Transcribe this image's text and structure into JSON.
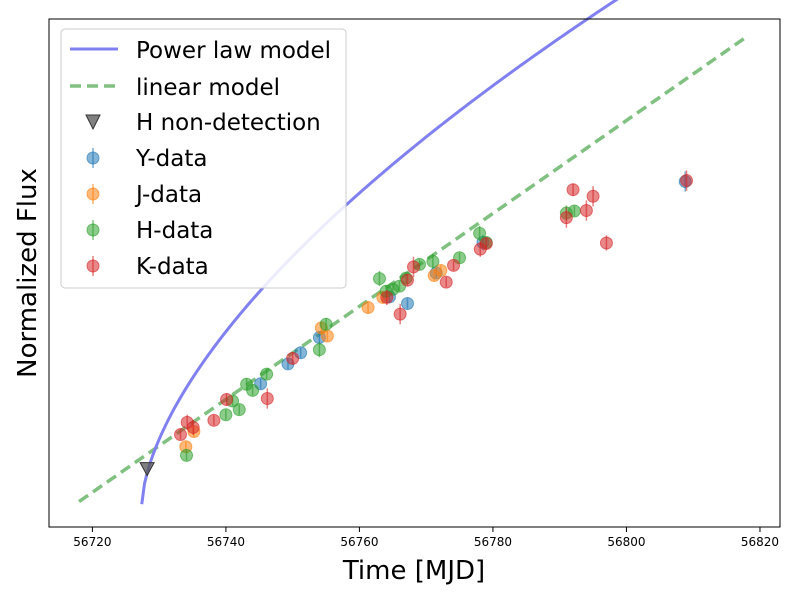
{
  "chart_data": {
    "type": "scatter",
    "title": "",
    "xlabel": "Time [MJD]",
    "ylabel": "Normalized Flux",
    "xlim": [
      56713.5,
      56823
    ],
    "ylim": [
      0,
      100
    ],
    "xticks": [
      56720,
      56740,
      56760,
      56780,
      56800,
      56820
    ],
    "grid": false,
    "legend_position": "top-left",
    "legend": [
      "Power law model",
      "linear model",
      "H non-detection",
      "Y-data",
      "J-data",
      "H-data",
      "K-data"
    ],
    "colors": {
      "power": "#8080f0",
      "linear": "#80c080",
      "nondet": "#555555",
      "Y": "#1f77b4",
      "J": "#ff7f0e",
      "H": "#2ca02c",
      "K": "#d62728"
    },
    "power_law_model": {
      "name": "Power law model",
      "t0": 56727.4,
      "tend": 56807.5,
      "y0": 4.5,
      "scale": 7.06,
      "exponent": 0.62
    },
    "linear_model": {
      "name": "linear model",
      "x": [
        56718,
        56818
      ],
      "y": [
        5,
        96.5
      ]
    },
    "nondetection": {
      "name": "H non-detection",
      "points": [
        {
          "x": 56728.2,
          "y": 11.5
        }
      ]
    },
    "series": [
      {
        "name": "Y-data",
        "key": "Y",
        "points": [
          {
            "x": 56745.2,
            "y": 28.2,
            "err": 1.0
          },
          {
            "x": 56749.3,
            "y": 32.1,
            "err": 1.0
          },
          {
            "x": 56751.2,
            "y": 34.3,
            "err": 1.0
          },
          {
            "x": 56754.0,
            "y": 37.3,
            "err": 1.2
          },
          {
            "x": 56764.5,
            "y": 45.3,
            "err": 1.0
          },
          {
            "x": 56767.2,
            "y": 44.0,
            "err": 1.0
          },
          {
            "x": 56771.5,
            "y": 50.0,
            "err": 1.0
          },
          {
            "x": 56778.5,
            "y": 56.0,
            "err": 1.5
          },
          {
            "x": 56808.8,
            "y": 68.0,
            "err": 2.0
          }
        ]
      },
      {
        "name": "J-data",
        "key": "J",
        "points": [
          {
            "x": 56734.0,
            "y": 15.8,
            "err": 1.0
          },
          {
            "x": 56735.2,
            "y": 18.8,
            "err": 1.0
          },
          {
            "x": 56754.3,
            "y": 39.2,
            "err": 1.2
          },
          {
            "x": 56755.2,
            "y": 37.6,
            "err": 1.0
          },
          {
            "x": 56761.3,
            "y": 43.2,
            "err": 1.2
          },
          {
            "x": 56763.5,
            "y": 45.2,
            "err": 1.2
          },
          {
            "x": 56771.2,
            "y": 49.5,
            "err": 1.0
          },
          {
            "x": 56772.2,
            "y": 50.5,
            "err": 1.0
          }
        ]
      },
      {
        "name": "H-data",
        "key": "H",
        "points": [
          {
            "x": 56734.1,
            "y": 14.1,
            "err": 1.0
          },
          {
            "x": 56740.0,
            "y": 22.1,
            "err": 1.0
          },
          {
            "x": 56741.0,
            "y": 24.8,
            "err": 1.0
          },
          {
            "x": 56742.0,
            "y": 23.1,
            "err": 1.0
          },
          {
            "x": 56743.1,
            "y": 28.1,
            "err": 1.2
          },
          {
            "x": 56744.0,
            "y": 26.9,
            "err": 1.0
          },
          {
            "x": 56746.1,
            "y": 30.1,
            "err": 1.0
          },
          {
            "x": 56754.0,
            "y": 34.9,
            "err": 1.5
          },
          {
            "x": 56755.0,
            "y": 39.9,
            "err": 1.2
          },
          {
            "x": 56763.0,
            "y": 48.9,
            "err": 1.5
          },
          {
            "x": 56764.0,
            "y": 46.4,
            "err": 1.2
          },
          {
            "x": 56765.0,
            "y": 46.8,
            "err": 1.0
          },
          {
            "x": 56766.0,
            "y": 47.4,
            "err": 1.0
          },
          {
            "x": 56767.0,
            "y": 49.0,
            "err": 1.0
          },
          {
            "x": 56769.0,
            "y": 51.7,
            "err": 1.0
          },
          {
            "x": 56771.0,
            "y": 52.3,
            "err": 1.5
          },
          {
            "x": 56775.0,
            "y": 53.0,
            "err": 1.0
          },
          {
            "x": 56778.0,
            "y": 57.8,
            "err": 1.5
          },
          {
            "x": 56779.0,
            "y": 56.0,
            "err": 1.0
          },
          {
            "x": 56791.0,
            "y": 61.8,
            "err": 1.5
          },
          {
            "x": 56792.2,
            "y": 62.2,
            "err": 1.0
          }
        ]
      },
      {
        "name": "K-data",
        "key": "K",
        "points": [
          {
            "x": 56733.2,
            "y": 18.2,
            "err": 1.0
          },
          {
            "x": 56734.2,
            "y": 20.6,
            "err": 1.5
          },
          {
            "x": 56735.1,
            "y": 19.6,
            "err": 1.5
          },
          {
            "x": 56738.2,
            "y": 21.0,
            "err": 1.0
          },
          {
            "x": 56740.1,
            "y": 25.1,
            "err": 1.2
          },
          {
            "x": 56746.2,
            "y": 25.3,
            "err": 2.0
          },
          {
            "x": 56750.0,
            "y": 33.2,
            "err": 1.2
          },
          {
            "x": 56764.1,
            "y": 45.2,
            "err": 1.5
          },
          {
            "x": 56766.1,
            "y": 41.9,
            "err": 2.0
          },
          {
            "x": 56767.2,
            "y": 48.6,
            "err": 1.2
          },
          {
            "x": 56768.1,
            "y": 51.2,
            "err": 2.0
          },
          {
            "x": 56773.0,
            "y": 48.2,
            "err": 1.0
          },
          {
            "x": 56774.1,
            "y": 51.5,
            "err": 1.0
          },
          {
            "x": 56778.1,
            "y": 54.7,
            "err": 1.5
          },
          {
            "x": 56779.0,
            "y": 55.8,
            "err": 1.2
          },
          {
            "x": 56791.0,
            "y": 60.9,
            "err": 2.0
          },
          {
            "x": 56792.0,
            "y": 66.4,
            "err": 1.2
          },
          {
            "x": 56794.0,
            "y": 62.3,
            "err": 2.0
          },
          {
            "x": 56795.0,
            "y": 65.1,
            "err": 2.0
          },
          {
            "x": 56797.0,
            "y": 55.9,
            "err": 1.5
          },
          {
            "x": 56809.0,
            "y": 68.2,
            "err": 2.0
          }
        ]
      }
    ]
  }
}
